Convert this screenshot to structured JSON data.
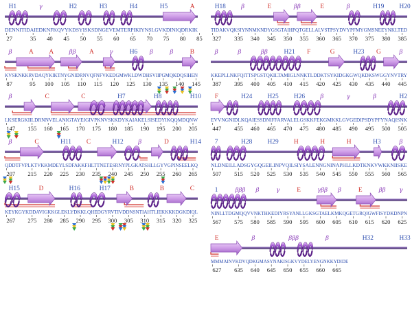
{
  "colors": {
    "helix": "#8b3fc0",
    "helix_dark": "#5a1f87",
    "helix_light": "#d6a3ef",
    "strand": "#c88fe0",
    "strand_edge": "#8a4ab5",
    "backbone": "#5a3a86",
    "label_blue": "#2f4fb0",
    "label_red": "#d0302a",
    "beta_purple": "#8a3cb8",
    "bracket_red": "#d0302a"
  },
  "rows": [
    {
      "sequence": "DENNITIDAIEDKNFKQVYKDSYISKSDNGEVEMTERPIKIYNSLGVKDINIQDRKIK",
      "start": 27,
      "ticks": [
        "27",
        "35",
        "40",
        "45",
        "50",
        "55",
        "60",
        "65",
        "70",
        "75",
        "80",
        "85"
      ],
      "labels": [
        {
          "text": "H1",
          "kind": "helix"
        },
        {
          "text": "γ",
          "kind": "beta"
        },
        {
          "text": "H2",
          "kind": "helix"
        },
        {
          "text": "H3",
          "kind": "helix"
        },
        {
          "text": "H4",
          "kind": "helix"
        },
        {
          "text": "H5",
          "kind": "helix"
        },
        {
          "text": "A",
          "kind": "sheet"
        }
      ]
    },
    {
      "sequence": "KVSKNKKRVDAQYKIKTNYGNIDRNVQFNFVKEDGMWKLDWDHSVIIPGMQKDQSIHEN",
      "start": 87,
      "ticks": [
        "87",
        "95",
        "100",
        "105",
        "110",
        "115",
        "120",
        "125",
        "130",
        "135",
        "140",
        "145"
      ],
      "labels": [
        {
          "text": "β",
          "kind": "beta"
        },
        {
          "text": "A",
          "kind": "sheet"
        },
        {
          "text": "A",
          "kind": "sheet"
        },
        {
          "text": "ββ",
          "kind": "beta"
        },
        {
          "text": "A",
          "kind": "sheet"
        },
        {
          "text": "γ",
          "kind": "beta"
        },
        {
          "text": "H6",
          "kind": "helix"
        },
        {
          "text": "β",
          "kind": "beta"
        },
        {
          "text": "β",
          "kind": "beta"
        },
        {
          "text": "B",
          "kind": "sheet"
        }
      ]
    },
    {
      "sequence": "LKSERGKIILDRNNVELANIGTAYEIGIVPKNVSKKDYKAIAKELSISEDYIKQQMDQNW",
      "start": 147,
      "ticks": [
        "147",
        "155",
        "160",
        "165",
        "170",
        "175",
        "180",
        "185",
        "190",
        "195",
        "200",
        "205"
      ],
      "labels": [
        {
          "text": "β",
          "kind": "beta"
        },
        {
          "text": "C",
          "kind": "sheet"
        },
        {
          "text": "C",
          "kind": "sheet"
        },
        {
          "text": "H7",
          "kind": "helix"
        },
        {
          "text": "H8",
          "kind": "helix"
        },
        {
          "text": "H10",
          "kind": "helix"
        }
      ]
    },
    {
      "sequence": "QDDTFVPLKTVKKMDEYLSDFAKKFHLTTNETESRNYPLGKATSHLLGYVGPINSEELKQ",
      "start": 207,
      "ticks": [
        "207",
        "215",
        "220",
        "225",
        "230",
        "235",
        "240",
        "245",
        "250",
        "255",
        "260",
        "265"
      ],
      "labels": [
        {
          "text": "β",
          "kind": "beta"
        },
        {
          "text": "C",
          "kind": "sheet"
        },
        {
          "text": "H11",
          "kind": "helix"
        },
        {
          "text": "C",
          "kind": "sheet"
        },
        {
          "text": "H12",
          "kind": "helix"
        },
        {
          "text": "β",
          "kind": "beta"
        },
        {
          "text": "D",
          "kind": "sheet"
        },
        {
          "text": "H14",
          "kind": "helix"
        }
      ]
    },
    {
      "sequence": "KEYKGYKDDAVIGKKGLEKLYDKKLQHEDGYRVTIVDDNSNTIAHTLIEKKKKDGKDIQL",
      "start": 267,
      "ticks": [
        "267",
        "275",
        "280",
        "285",
        "290",
        "295",
        "300",
        "305",
        "310",
        "315",
        "320",
        "325"
      ],
      "labels": [
        {
          "text": "H15",
          "kind": "helix"
        },
        {
          "text": "D",
          "kind": "sheet"
        },
        {
          "text": "H16",
          "kind": "helix"
        },
        {
          "text": "H17",
          "kind": "helix"
        },
        {
          "text": "B",
          "kind": "sheet"
        },
        {
          "text": "B",
          "kind": "sheet"
        },
        {
          "text": "C",
          "kind": "sheet"
        }
      ]
    },
    {
      "sequence": "TIDAKVQKSIYNNMKNDYGSGTAIHPQTGELLALVSTPSYDVYPFMYGMSNEEYNKLTED",
      "start": 327,
      "ticks": [
        "327",
        "335",
        "340",
        "345",
        "350",
        "355",
        "360",
        "365",
        "370",
        "375",
        "380",
        "385"
      ],
      "labels": [
        {
          "text": "H18",
          "kind": "helix"
        },
        {
          "text": "β",
          "kind": "beta"
        },
        {
          "text": "E",
          "kind": "sheet"
        },
        {
          "text": "ββ",
          "kind": "beta"
        },
        {
          "text": "E",
          "kind": "sheet"
        },
        {
          "text": "β",
          "kind": "beta"
        },
        {
          "text": "H19",
          "kind": "helix"
        },
        {
          "text": "H20",
          "kind": "helix"
        }
      ]
    },
    {
      "sequence": "KKEPLLNKFQITTSPGSTQKILTAMIGLNNKTLDDKTSYKIDGKGWQKDKSWGGYNVTRY",
      "start": 387,
      "ticks": [
        "387",
        "395",
        "400",
        "405",
        "410",
        "415",
        "420",
        "425",
        "430",
        "435",
        "440",
        "445"
      ],
      "labels": [
        {
          "text": "β",
          "kind": "beta"
        },
        {
          "text": "β",
          "kind": "beta"
        },
        {
          "text": "ββ",
          "kind": "beta"
        },
        {
          "text": "H21",
          "kind": "helix"
        },
        {
          "text": "F",
          "kind": "sheet"
        },
        {
          "text": "G",
          "kind": "sheet"
        },
        {
          "text": "H23",
          "kind": "helix"
        },
        {
          "text": "G",
          "kind": "sheet"
        },
        {
          "text": "β",
          "kind": "beta"
        }
      ]
    },
    {
      "sequence": "EVVNGNIDLKQAIESSDNIFFARVALELGSKKFEKGMKKLGVGEDIPSDYPFYNAQISNK",
      "start": 447,
      "ticks": [
        "447",
        "455",
        "460",
        "465",
        "470",
        "475",
        "480",
        "485",
        "490",
        "495",
        "500",
        "505"
      ],
      "labels": [
        {
          "text": "F",
          "kind": "sheet"
        },
        {
          "text": "H24",
          "kind": "helix"
        },
        {
          "text": "H25",
          "kind": "helix"
        },
        {
          "text": "H26",
          "kind": "helix"
        },
        {
          "text": "β",
          "kind": "beta"
        },
        {
          "text": "γ",
          "kind": "beta"
        },
        {
          "text": "β",
          "kind": "beta"
        },
        {
          "text": "H2",
          "kind": "helix"
        }
      ]
    },
    {
      "sequence": "NLDNEILLADSGYGQGEILINPVQILSIYSALENNGNINAPHLLKDTKNKVWKKNIISKE",
      "start": 507,
      "ticks": [
        "507",
        "515",
        "520",
        "525",
        "530",
        "535",
        "540",
        "545",
        "550",
        "555",
        "560",
        "565"
      ],
      "labels": [
        {
          "text": "7",
          "kind": "helix"
        },
        {
          "text": "H28",
          "kind": "helix"
        },
        {
          "text": "H29",
          "kind": "helix"
        },
        {
          "text": "H",
          "kind": "sheet"
        },
        {
          "text": "H",
          "kind": "sheet"
        },
        {
          "text": "H",
          "kind": "sheet"
        },
        {
          "text": "H3",
          "kind": "helix"
        },
        {
          "text": "β",
          "kind": "beta"
        }
      ]
    },
    {
      "sequence": "NINLLTDGMQQVVNKTHKEDIYRSYANLLGKSGTAELKMKQGETGRQIGWFISYDKDNPN",
      "start": 567,
      "ticks": [
        "567",
        "575",
        "580",
        "585",
        "590",
        "595",
        "600",
        "605",
        "610",
        "615",
        "620",
        "625"
      ],
      "labels": [
        {
          "text": "1",
          "kind": "helix"
        },
        {
          "text": "βββ",
          "kind": "beta"
        },
        {
          "text": "β",
          "kind": "beta"
        },
        {
          "text": "γ",
          "kind": "beta"
        },
        {
          "text": "E",
          "kind": "sheet"
        },
        {
          "text": "γββ",
          "kind": "beta"
        },
        {
          "text": "β",
          "kind": "beta"
        },
        {
          "text": "E",
          "kind": "sheet"
        },
        {
          "text": "ββ",
          "kind": "beta"
        },
        {
          "text": "γ",
          "kind": "beta"
        }
      ]
    },
    {
      "sequence": "MMMAINVKDVQDKGMASYNAKISGKVYDELYENGNKKYDIDE",
      "start": 627,
      "ticks": [
        "627",
        "635",
        "640",
        "645",
        "650",
        "655",
        "660",
        "665"
      ],
      "labels": [
        {
          "text": "E",
          "kind": "sheet"
        },
        {
          "text": "β",
          "kind": "beta"
        },
        {
          "text": "βββ",
          "kind": "beta"
        },
        {
          "text": "β",
          "kind": "beta"
        },
        {
          "text": "H32",
          "kind": "helix"
        },
        {
          "text": "H33",
          "kind": "helix"
        }
      ]
    }
  ]
}
